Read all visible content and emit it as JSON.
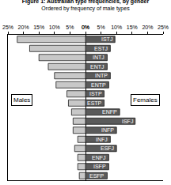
{
  "chart_data": {
    "type": "bar",
    "orientation": "horizontal",
    "title": "Figure 1: Australian type frequencies, by gender",
    "subtitle": "Ordered by frequency of male types",
    "categories": [
      "ISTJ",
      "ESTJ",
      "INTJ",
      "ENTJ",
      "INTP",
      "ENTP",
      "ISTP",
      "ESTP",
      "ENFP",
      "ISFJ",
      "INFP",
      "INFJ",
      "ESFJ",
      "ENFJ",
      "ISFP",
      "ESFP"
    ],
    "series": [
      {
        "name": "Males",
        "color": "#c8c8c8",
        "values": [
          22,
          18,
          15,
          12,
          10,
          9.5,
          6,
          5.5,
          4.5,
          4,
          4,
          2.5,
          3.5,
          2.5,
          2.5,
          2
        ]
      },
      {
        "name": "Females",
        "color": "#5a5a5a",
        "values": [
          9.5,
          8,
          7,
          7,
          8,
          7.5,
          6,
          6,
          11,
          16,
          10,
          8,
          10,
          7.5,
          7.5,
          7
        ]
      }
    ],
    "xlim": [
      0,
      25
    ],
    "xticks": [
      {
        "value": 0,
        "label": "0%"
      },
      {
        "value": 5,
        "label": "5%"
      },
      {
        "value": 10,
        "label": "10%"
      },
      {
        "value": 15,
        "label": "15%"
      },
      {
        "value": 20,
        "label": "20%"
      },
      {
        "value": 25,
        "label": "25%"
      }
    ],
    "grid": false,
    "tick_labels": "x"
  }
}
